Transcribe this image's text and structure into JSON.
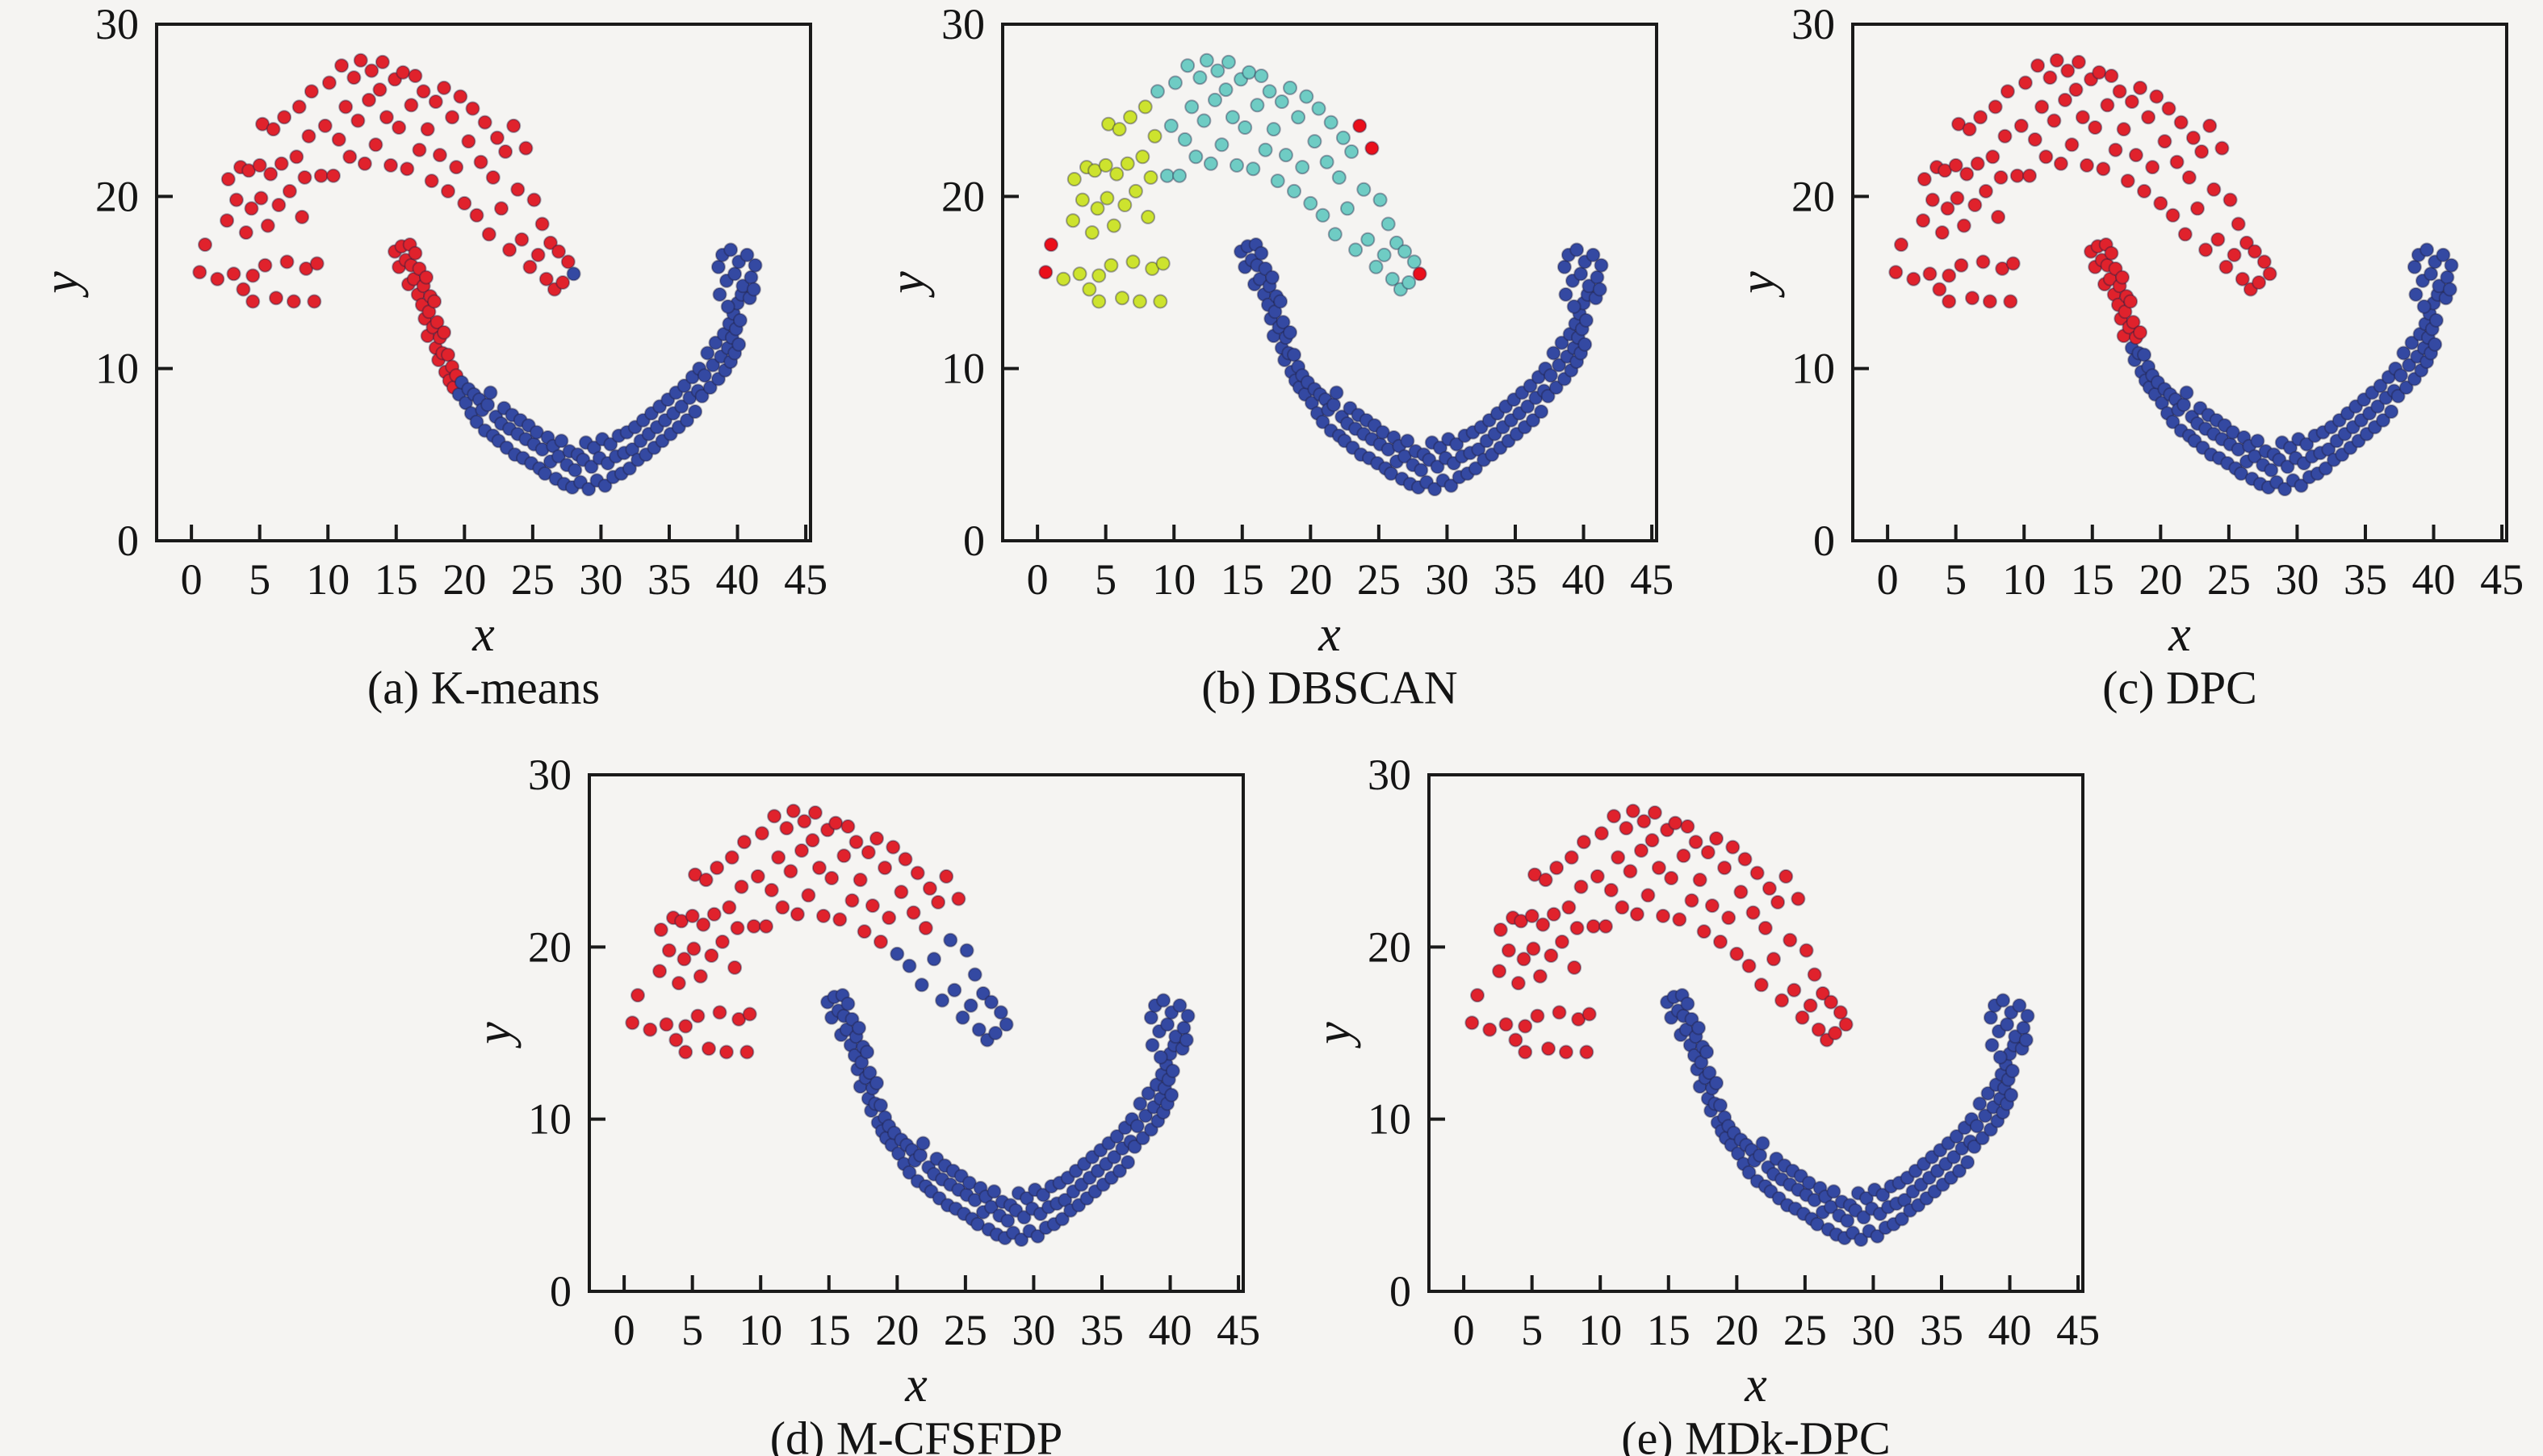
{
  "figure": {
    "background": "#f5f4f2",
    "frame_color": "#1a1a1a",
    "point_edge": "rgba(28,30,62,0.38)"
  },
  "chart_data": {
    "type": "scatter",
    "title": "",
    "xlabel": "x",
    "ylabel": "y",
    "xlim": [
      -2.55,
      45.35
    ],
    "ylim": [
      0,
      30
    ],
    "xticks": [
      0,
      5,
      10,
      15,
      20,
      25,
      30,
      35,
      40,
      45
    ],
    "yticks": [
      0,
      10,
      20,
      30
    ],
    "grid": false,
    "legend": "none",
    "cluster_colors": {
      "r": "#e0222c",
      "b": "#3449a2",
      "g": "#cde32e",
      "c": "#6fccc4",
      "n": "#ea0f1b"
    },
    "cluster_names": {
      "r": "moon-1-red",
      "b": "moon-2-blue",
      "g": "dbscan-cluster-yellowgreen",
      "c": "dbscan-cluster-cyan",
      "n": "dbscan-noise-red"
    },
    "points": {
      "upper": [
        [
          0.6,
          15.6
        ],
        [
          1.0,
          17.2
        ],
        [
          1.9,
          15.2
        ],
        [
          2.6,
          18.6
        ],
        [
          2.7,
          21.0
        ],
        [
          3.1,
          15.5
        ],
        [
          3.3,
          19.8
        ],
        [
          3.6,
          21.7
        ],
        [
          3.8,
          14.6
        ],
        [
          4.0,
          17.9
        ],
        [
          4.2,
          21.5
        ],
        [
          4.4,
          19.3
        ],
        [
          4.5,
          15.4
        ],
        [
          4.5,
          13.9
        ],
        [
          5.0,
          21.8
        ],
        [
          5.1,
          19.9
        ],
        [
          5.2,
          24.2
        ],
        [
          5.4,
          16.0
        ],
        [
          5.6,
          18.3
        ],
        [
          5.8,
          21.3
        ],
        [
          6.0,
          23.9
        ],
        [
          6.2,
          14.1
        ],
        [
          6.4,
          19.5
        ],
        [
          6.6,
          21.9
        ],
        [
          6.8,
          24.6
        ],
        [
          7.0,
          16.2
        ],
        [
          7.2,
          20.3
        ],
        [
          7.5,
          13.9
        ],
        [
          7.7,
          22.3
        ],
        [
          7.9,
          25.2
        ],
        [
          8.1,
          18.8
        ],
        [
          8.3,
          21.1
        ],
        [
          8.4,
          15.8
        ],
        [
          8.6,
          23.5
        ],
        [
          8.8,
          26.1
        ],
        [
          9.0,
          13.9
        ],
        [
          9.2,
          16.1
        ],
        [
          9.5,
          21.2
        ],
        [
          9.8,
          24.1
        ],
        [
          10.1,
          26.6
        ],
        [
          10.4,
          21.2
        ],
        [
          10.8,
          23.3
        ],
        [
          11.0,
          27.6
        ],
        [
          11.3,
          25.2
        ],
        [
          11.6,
          22.3
        ],
        [
          11.9,
          26.9
        ],
        [
          12.2,
          24.4
        ],
        [
          12.4,
          27.9
        ],
        [
          12.7,
          21.9
        ],
        [
          13.0,
          25.6
        ],
        [
          13.2,
          27.3
        ],
        [
          13.5,
          23.0
        ],
        [
          13.8,
          26.2
        ],
        [
          14.0,
          27.8
        ],
        [
          14.3,
          24.6
        ],
        [
          14.6,
          21.8
        ],
        [
          14.9,
          26.8
        ],
        [
          15.2,
          24.0
        ],
        [
          15.5,
          27.2
        ],
        [
          15.8,
          21.6
        ],
        [
          16.1,
          25.3
        ],
        [
          16.4,
          27.0
        ],
        [
          16.7,
          22.7
        ],
        [
          17.0,
          26.1
        ],
        [
          17.3,
          23.9
        ],
        [
          17.6,
          20.9
        ],
        [
          17.9,
          25.5
        ],
        [
          18.2,
          22.4
        ],
        [
          18.5,
          26.3
        ],
        [
          18.8,
          20.3
        ],
        [
          19.1,
          24.6
        ],
        [
          19.4,
          21.7
        ],
        [
          19.7,
          25.8
        ],
        [
          20.0,
          19.6
        ],
        [
          20.3,
          23.2
        ],
        [
          20.6,
          25.1
        ],
        [
          20.9,
          18.9
        ],
        [
          21.2,
          22.0
        ],
        [
          21.5,
          24.3
        ],
        [
          21.8,
          17.8
        ],
        [
          22.1,
          21.1
        ],
        [
          22.4,
          23.4
        ],
        [
          22.7,
          19.3
        ],
        [
          23.0,
          22.6
        ],
        [
          23.3,
          16.9
        ],
        [
          23.6,
          24.1
        ],
        [
          23.9,
          20.4
        ],
        [
          24.2,
          17.5
        ],
        [
          24.5,
          22.8
        ],
        [
          24.8,
          15.9
        ],
        [
          25.1,
          19.8
        ],
        [
          25.4,
          16.6
        ],
        [
          25.7,
          18.4
        ],
        [
          26.0,
          15.2
        ],
        [
          26.3,
          17.3
        ],
        [
          26.6,
          14.6
        ],
        [
          26.9,
          16.8
        ],
        [
          27.2,
          15.0
        ],
        [
          27.6,
          16.2
        ],
        [
          28.0,
          15.5
        ]
      ],
      "lower": [
        [
          14.9,
          16.8
        ],
        [
          15.2,
          15.9
        ],
        [
          15.4,
          17.1
        ],
        [
          15.7,
          16.3
        ],
        [
          15.9,
          14.9
        ],
        [
          16.0,
          17.2
        ],
        [
          16.1,
          16.0
        ],
        [
          16.3,
          15.2
        ],
        [
          16.4,
          16.7
        ],
        [
          16.6,
          14.3
        ],
        [
          16.7,
          15.8
        ],
        [
          16.9,
          13.7
        ],
        [
          17.0,
          14.8
        ],
        [
          17.1,
          12.9
        ],
        [
          17.2,
          15.3
        ],
        [
          17.3,
          11.9
        ],
        [
          17.4,
          13.3
        ],
        [
          17.5,
          14.2
        ],
        [
          17.7,
          12.4
        ],
        [
          17.8,
          13.9
        ],
        [
          17.9,
          11.2
        ],
        [
          18.0,
          12.7
        ],
        [
          18.1,
          10.5
        ],
        [
          18.2,
          11.8
        ],
        [
          18.4,
          10.9
        ],
        [
          18.5,
          12.1
        ],
        [
          18.6,
          9.8
        ],
        [
          18.8,
          10.8
        ],
        [
          18.9,
          9.3
        ],
        [
          19.1,
          10.1
        ],
        [
          19.2,
          8.9
        ],
        [
          19.4,
          9.6
        ],
        [
          19.6,
          8.5
        ],
        [
          19.8,
          9.2
        ],
        [
          20.1,
          8.0
        ],
        [
          20.3,
          8.8
        ],
        [
          20.5,
          7.4
        ],
        [
          20.7,
          8.5
        ],
        [
          20.9,
          6.9
        ],
        [
          21.1,
          8.2
        ],
        [
          21.3,
          7.6
        ],
        [
          21.5,
          6.4
        ],
        [
          21.7,
          7.9
        ],
        [
          21.9,
          8.6
        ],
        [
          22.1,
          6.1
        ],
        [
          22.3,
          7.2
        ],
        [
          22.5,
          5.8
        ],
        [
          22.7,
          6.8
        ],
        [
          22.9,
          7.7
        ],
        [
          23.1,
          5.4
        ],
        [
          23.3,
          6.5
        ],
        [
          23.5,
          7.3
        ],
        [
          23.7,
          5.0
        ],
        [
          23.9,
          6.2
        ],
        [
          24.1,
          7.0
        ],
        [
          24.3,
          4.8
        ],
        [
          24.5,
          5.9
        ],
        [
          24.7,
          6.7
        ],
        [
          24.9,
          4.5
        ],
        [
          25.1,
          5.6
        ],
        [
          25.3,
          6.3
        ],
        [
          25.5,
          4.2
        ],
        [
          25.7,
          5.3
        ],
        [
          25.9,
          3.9
        ],
        [
          26.1,
          6.0
        ],
        [
          26.3,
          4.6
        ],
        [
          26.5,
          5.5
        ],
        [
          26.7,
          3.6
        ],
        [
          26.9,
          4.9
        ],
        [
          27.1,
          5.8
        ],
        [
          27.3,
          3.3
        ],
        [
          27.5,
          4.4
        ],
        [
          27.7,
          5.2
        ],
        [
          27.9,
          3.1
        ],
        [
          28.1,
          4.1
        ],
        [
          28.3,
          5.0
        ],
        [
          28.5,
          3.4
        ],
        [
          28.7,
          4.7
        ],
        [
          28.9,
          5.7
        ],
        [
          29.1,
          3.0
        ],
        [
          29.3,
          4.3
        ],
        [
          29.5,
          5.4
        ],
        [
          29.7,
          3.5
        ],
        [
          29.9,
          4.8
        ],
        [
          30.1,
          5.9
        ],
        [
          30.3,
          3.2
        ],
        [
          30.5,
          4.5
        ],
        [
          30.7,
          5.6
        ],
        [
          30.9,
          3.7
        ],
        [
          31.1,
          4.9
        ],
        [
          31.3,
          6.1
        ],
        [
          31.5,
          3.9
        ],
        [
          31.7,
          5.1
        ],
        [
          31.9,
          6.3
        ],
        [
          32.1,
          4.2
        ],
        [
          32.3,
          5.3
        ],
        [
          32.5,
          6.6
        ],
        [
          32.7,
          4.7
        ],
        [
          32.9,
          5.8
        ],
        [
          33.1,
          7.0
        ],
        [
          33.3,
          5.0
        ],
        [
          33.5,
          6.2
        ],
        [
          33.7,
          7.4
        ],
        [
          33.9,
          5.4
        ],
        [
          34.1,
          6.6
        ],
        [
          34.3,
          7.8
        ],
        [
          34.5,
          5.8
        ],
        [
          34.7,
          7.0
        ],
        [
          34.9,
          8.2
        ],
        [
          35.1,
          6.2
        ],
        [
          35.3,
          7.4
        ],
        [
          35.5,
          8.6
        ],
        [
          35.7,
          6.6
        ],
        [
          35.9,
          7.8
        ],
        [
          36.1,
          9.0
        ],
        [
          36.3,
          7.0
        ],
        [
          36.5,
          8.3
        ],
        [
          36.7,
          9.5
        ],
        [
          36.9,
          7.5
        ],
        [
          37.1,
          8.7
        ],
        [
          37.2,
          10.0
        ],
        [
          37.4,
          8.4
        ],
        [
          37.6,
          9.6
        ],
        [
          37.8,
          10.9
        ],
        [
          38.0,
          8.9
        ],
        [
          38.2,
          10.2
        ],
        [
          38.4,
          11.5
        ],
        [
          38.6,
          9.4
        ],
        [
          38.8,
          10.7
        ],
        [
          39.0,
          12.0
        ],
        [
          39.1,
          9.9
        ],
        [
          39.3,
          11.2
        ],
        [
          39.4,
          12.6
        ],
        [
          39.5,
          10.4
        ],
        [
          39.6,
          11.8
        ],
        [
          39.7,
          13.2
        ],
        [
          39.8,
          10.9
        ],
        [
          39.9,
          12.3
        ],
        [
          40.0,
          13.8
        ],
        [
          40.1,
          11.4
        ],
        [
          40.2,
          12.8
        ],
        [
          40.3,
          14.3
        ],
        [
          38.6,
          15.9
        ],
        [
          38.9,
          16.6
        ],
        [
          39.2,
          15.1
        ],
        [
          39.5,
          16.9
        ],
        [
          39.8,
          15.5
        ],
        [
          40.1,
          16.2
        ],
        [
          40.4,
          14.8
        ],
        [
          40.7,
          16.6
        ],
        [
          41.0,
          15.3
        ],
        [
          41.3,
          16.0
        ],
        [
          40.9,
          14.1
        ],
        [
          38.7,
          14.3
        ],
        [
          39.3,
          13.6
        ],
        [
          41.2,
          14.6
        ]
      ]
    },
    "subplots": [
      {
        "id": "a",
        "caption": "(a) K-means",
        "upper_assign": "99r1b",
        "lower_assign": "32r124b"
      },
      {
        "id": "b",
        "caption": "(b) DBSCAN",
        "upper_assign": "2n32g1c2g48c1n2c1n10c1n",
        "lower_assign": "156b"
      },
      {
        "id": "c",
        "caption": "(c) DPC",
        "upper_assign": "100r",
        "lower_assign": "20r1b1r1b1r1b1r130b"
      },
      {
        "id": "d",
        "caption": "(d) M-CFSFDP",
        "upper_assign": "73r1b2r1b2r1b2r1b1r1b1r2b1r11b",
        "lower_assign": "156b"
      },
      {
        "id": "e",
        "caption": "(e) MDk-DPC",
        "upper_assign": "100r",
        "lower_assign": "156b"
      }
    ]
  }
}
